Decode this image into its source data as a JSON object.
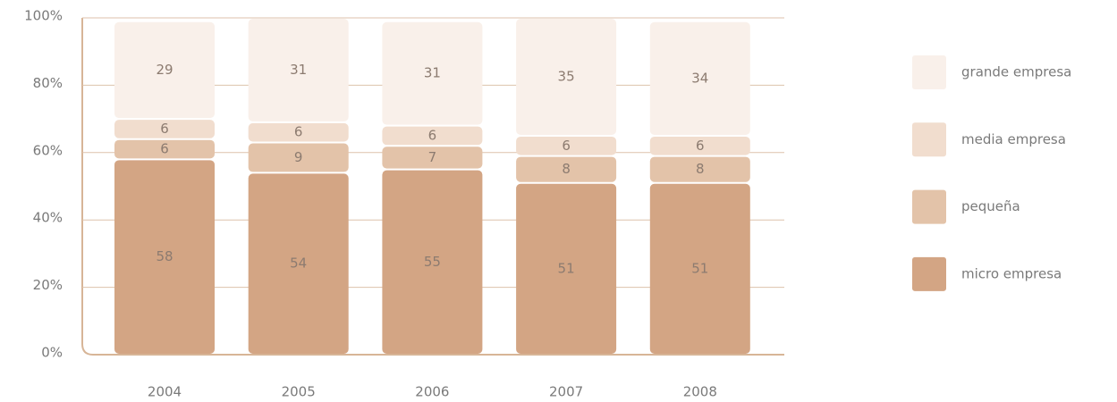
{
  "chart_data": {
    "type": "stacked_bar",
    "categories": [
      "2004",
      "2005",
      "2006",
      "2007",
      "2008"
    ],
    "series": [
      {
        "name": "micro empresa",
        "color": "#d3a584",
        "values": [
          58,
          54,
          55,
          51,
          51
        ]
      },
      {
        "name": "pequeña",
        "color": "#e3c3a9",
        "values": [
          6,
          9,
          7,
          8,
          8
        ]
      },
      {
        "name": "media empresa",
        "color": "#f1ddce",
        "values": [
          6,
          6,
          6,
          6,
          6
        ]
      },
      {
        "name": "grande empresa",
        "color": "#f9f0ea",
        "values": [
          29,
          31,
          31,
          35,
          34
        ]
      }
    ],
    "ylim": [
      0,
      100
    ],
    "yticks": [
      {
        "value": 0,
        "label": "0%"
      },
      {
        "value": 20,
        "label": "20%"
      },
      {
        "value": 40,
        "label": "40%"
      },
      {
        "value": 60,
        "label": "60%"
      },
      {
        "value": 80,
        "label": "80%"
      },
      {
        "value": 100,
        "label": "100%"
      }
    ],
    "grid": true,
    "legend": "right"
  }
}
